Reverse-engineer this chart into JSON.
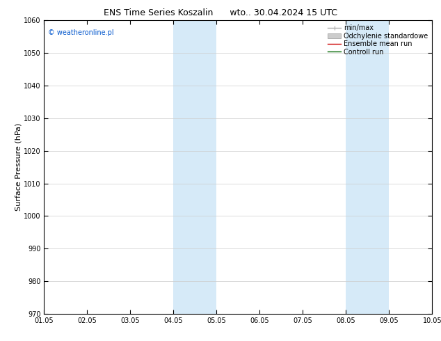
{
  "title": "ENS Time Series Koszalin      wto.. 30.04.2024 15 UTC",
  "ylabel": "Surface Pressure (hPa)",
  "xlabel_ticks": [
    "01.05",
    "02.05",
    "03.05",
    "04.05",
    "05.05",
    "06.05",
    "07.05",
    "08.05",
    "09.05",
    "10.05"
  ],
  "ylim": [
    970,
    1060
  ],
  "yticks": [
    970,
    980,
    990,
    1000,
    1010,
    1020,
    1030,
    1040,
    1050,
    1060
  ],
  "shaded_regions": [
    {
      "xstart": 3.0,
      "xend": 4.0
    },
    {
      "xstart": 7.0,
      "xend": 8.0
    }
  ],
  "shade_color": "#d6eaf8",
  "watermark": "© weatheronline.pl",
  "watermark_color": "#0055cc",
  "legend_items": [
    {
      "label": "min/max",
      "color": "#aaaaaa",
      "lw": 1.0
    },
    {
      "label": "Odchylenie standardowe",
      "color": "#cccccc",
      "lw": 5
    },
    {
      "label": "Ensemble mean run",
      "color": "#cc0000",
      "lw": 1.0
    },
    {
      "label": "Controll run",
      "color": "#006600",
      "lw": 1.0
    }
  ],
  "bg_color": "#ffffff",
  "grid_color": "#cccccc",
  "tick_color": "#000000",
  "title_fontsize": 9,
  "ylabel_fontsize": 8,
  "tick_fontsize": 7,
  "watermark_fontsize": 7,
  "legend_fontsize": 7
}
